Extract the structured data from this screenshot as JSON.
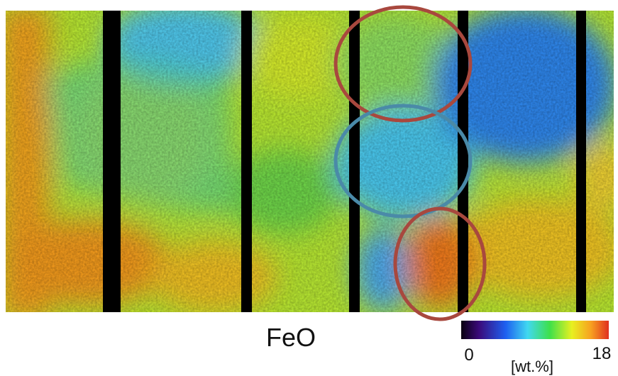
{
  "title": "FeO",
  "colorbar": {
    "min": 0,
    "max": 18,
    "unit": "[wt.%]"
  }
}
